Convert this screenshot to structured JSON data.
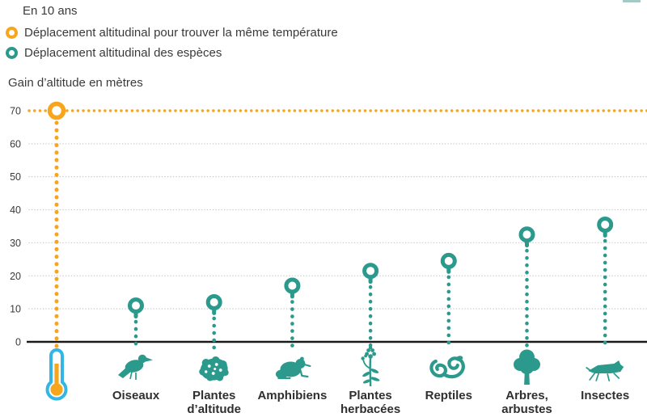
{
  "header": {
    "legend_title": "En 10 ans",
    "axis_title": "Gain d’altitude en mètres"
  },
  "legend": {
    "position": "top-left",
    "items": [
      {
        "label": "Déplacement altitudinal pour trouver la même température",
        "color": "#F6A51C",
        "marker": "ring"
      },
      {
        "label": "Déplacement altitudinal des espèces",
        "color": "#2B9A8C",
        "marker": "ring"
      }
    ]
  },
  "colors": {
    "orange": "#F6A51C",
    "teal": "#2B9A8C",
    "cyan": "#35B5E3",
    "axis": "#1A1A1A",
    "grid": "#C9C9C9",
    "text": "#3A3A39"
  },
  "chart_data": {
    "type": "bar",
    "style": "dotted-lollipop",
    "title": "",
    "xlabel": "",
    "ylabel": "Gain d’altitude en mètres",
    "unit": "mètres",
    "period": "En 10 ans",
    "ylim": [
      0,
      70
    ],
    "yticks": [
      0,
      10,
      20,
      30,
      40,
      50,
      60,
      70
    ],
    "grid": "horizontal dotted",
    "legend_position": "top-left",
    "categories": [
      "Oiseaux",
      "Plantes d’altitude",
      "Amphibiens",
      "Plantes herbacées",
      "Reptiles",
      "Arbres, arbustes",
      "Insectes"
    ],
    "category_lines": [
      [
        "Oiseaux"
      ],
      [
        "Plantes",
        "d’altitude"
      ],
      [
        "Amphibiens"
      ],
      [
        "Plantes",
        "herbacées"
      ],
      [
        "Reptiles"
      ],
      [
        "Arbres,",
        "arbustes"
      ],
      [
        "Insectes"
      ]
    ],
    "values": [
      11,
      12,
      17,
      21.5,
      24.5,
      32.5,
      35.5
    ],
    "icons": [
      "bird-icon",
      "cushion-plant-icon",
      "frog-icon",
      "herb-plant-icon",
      "snake-icon",
      "tree-icon",
      "grasshopper-icon"
    ],
    "series_name": "Déplacement altitudinal des espèces",
    "series_color": "#2B9A8C",
    "reference": {
      "label": "Déplacement altitudinal pour trouver la même température",
      "value": 70,
      "color": "#F6A51C",
      "icon": "thermometer-icon"
    },
    "thermometer_colors": {
      "outline": "#35B5E3",
      "fill": "#F6A51C"
    }
  }
}
